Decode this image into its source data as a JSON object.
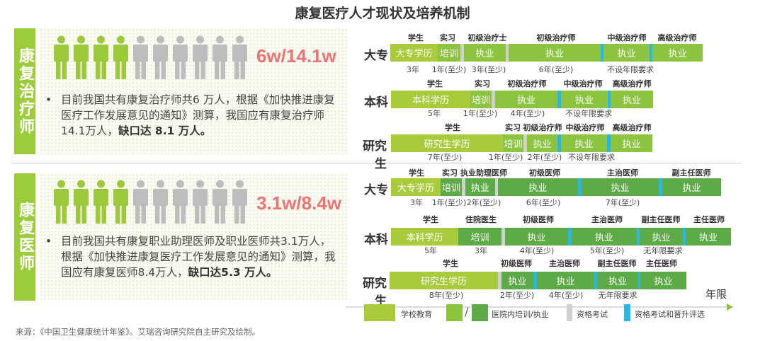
{
  "title": "康复医疗人才现状及培养机制",
  "colors": {
    "school": "#a8cb3c",
    "practice_therapist": "#8cc43f",
    "practice_doctor": "#5dab47",
    "exam": "#d0d0d0",
    "promotion": "#28b7e9",
    "ratio": "#f07272"
  },
  "left": [
    {
      "label": "康复治疗师",
      "filled": 4,
      "total": 10,
      "ratio": "6w/14.1w",
      "text": "目前我国共有康复治疗师共6 万人，根据《加快推进康复医疗工作发展意见的通知》测算，我国应有康复治疗师14.1万人，",
      "bold": "缺口达 8.1 万人。"
    },
    {
      "label": "康复医师",
      "filled": 4,
      "total": 10,
      "ratio": "3.1w/8.4w",
      "text": "目前我国共有康复职业助理医师及职业医师共3.1万人，根据《加快推进康复医疗工作发展意见的通知》测算，我国应有康复医师8.4万人，",
      "bold": "缺口达5.3 万人。"
    }
  ],
  "right": [
    {
      "name": "大专",
      "headers": [
        "学生",
        "实习",
        "初级治疗士",
        "初级治疗师",
        "中级治疗师",
        "高级治疗师"
      ],
      "segments": [
        {
          "type": "school",
          "label": "大专学历"
        },
        {
          "type": "practice",
          "label": "培训"
        },
        {
          "type": "exam"
        },
        {
          "type": "practice",
          "label": "执业"
        },
        {
          "type": "exam"
        },
        {
          "type": "practice",
          "label": "执业"
        },
        {
          "type": "promo"
        },
        {
          "type": "practice",
          "label": "执业"
        },
        {
          "type": "promo"
        },
        {
          "type": "practice",
          "label": "执业"
        }
      ],
      "durations": [
        "3年",
        "1年(至少)",
        "3年(至少)",
        "6年(至少)",
        "不设年限要求"
      ]
    },
    {
      "name": "本科",
      "headers": [
        "学生",
        "实习",
        "初级治疗师",
        "中级治疗师",
        "高级治疗师"
      ],
      "segments": [
        {
          "type": "school",
          "label": "本科学历"
        },
        {
          "type": "practice",
          "label": "培训"
        },
        {
          "type": "exam"
        },
        {
          "type": "practice",
          "label": "执业"
        },
        {
          "type": "promo"
        },
        {
          "type": "practice",
          "label": "执业"
        },
        {
          "type": "promo"
        },
        {
          "type": "practice",
          "label": "执业"
        }
      ],
      "durations": [
        "5年",
        "1年(至少)",
        "4年(至少)",
        "不设年限要求"
      ]
    },
    {
      "name": "研究生",
      "headers": [
        "学生",
        "实习",
        "初级治疗师",
        "中级治疗师",
        "高级治疗师"
      ],
      "segments": [
        {
          "type": "school",
          "label": "研究生学历"
        },
        {
          "type": "practice",
          "label": "培训"
        },
        {
          "type": "exam"
        },
        {
          "type": "practice",
          "label": "执业"
        },
        {
          "type": "promo"
        },
        {
          "type": "practice",
          "label": "执业"
        },
        {
          "type": "promo"
        },
        {
          "type": "practice",
          "label": "执业"
        }
      ],
      "durations": [
        "7年(至少)",
        "1年(至少)",
        "2年(至少)",
        "不设年限要求"
      ]
    },
    {
      "name": "大专",
      "headers": [
        "学生",
        "实习",
        "执业助理医师",
        "初级医师",
        "主治医师",
        "副主任医师"
      ],
      "segments": [
        {
          "type": "school",
          "label": "大专学历"
        },
        {
          "type": "practice2",
          "label": "培训"
        },
        {
          "type": "exam"
        },
        {
          "type": "practice2",
          "label": "执业"
        },
        {
          "type": "exam"
        },
        {
          "type": "practice2",
          "label": "执业"
        },
        {
          "type": "promo"
        },
        {
          "type": "practice2",
          "label": "执业"
        },
        {
          "type": "promo"
        },
        {
          "type": "practice2",
          "label": "执业"
        }
      ],
      "durations": [
        "3年",
        "1年(至少)",
        "2年(至少)",
        "6年(至少)",
        "7年(至少)"
      ]
    },
    {
      "name": "本科",
      "headers": [
        "学生",
        "住院医生",
        "初级医师",
        "主治医师",
        "副主任医师",
        "主任医师"
      ],
      "segments": [
        {
          "type": "school",
          "label": "本科学历"
        },
        {
          "type": "practice2",
          "label": "培训"
        },
        {
          "type": "exam"
        },
        {
          "type": "practice2",
          "label": "执业"
        },
        {
          "type": "promo"
        },
        {
          "type": "practice2",
          "label": "执业"
        },
        {
          "type": "promo"
        },
        {
          "type": "practice2",
          "label": "执业"
        },
        {
          "type": "promo"
        },
        {
          "type": "practice2",
          "label": "执业"
        }
      ],
      "durations": [
        "5年",
        "3年",
        "4年(至少)",
        "5年(至少)",
        "无年限要求"
      ]
    },
    {
      "name": "研究生",
      "headers": [
        "学生",
        "初级医师",
        "主治医师",
        "副主任医师",
        "主任医师"
      ],
      "segments": [
        {
          "type": "school",
          "label": "研究生学历"
        },
        {
          "type": "exam"
        },
        {
          "type": "practice2",
          "label": "执业"
        },
        {
          "type": "promo"
        },
        {
          "type": "practice2",
          "label": "执业"
        },
        {
          "type": "promo"
        },
        {
          "type": "practice2",
          "label": "执业"
        },
        {
          "type": "promo"
        },
        {
          "type": "practice2",
          "label": "执业"
        }
      ],
      "durations": [
        "8年(至少)",
        "2年(至少)",
        "4年(至少)",
        "无年限要求"
      ]
    }
  ],
  "axis_label": "年限",
  "legend": {
    "school": "学校教育",
    "practice": "医院内培训/执业",
    "exam": "资格考试",
    "promo": "资格考试和晋升评选"
  },
  "source": "来源：《中国卫生健康统计年鉴》。艾瑞咨询研究院自主研究及绘制。"
}
